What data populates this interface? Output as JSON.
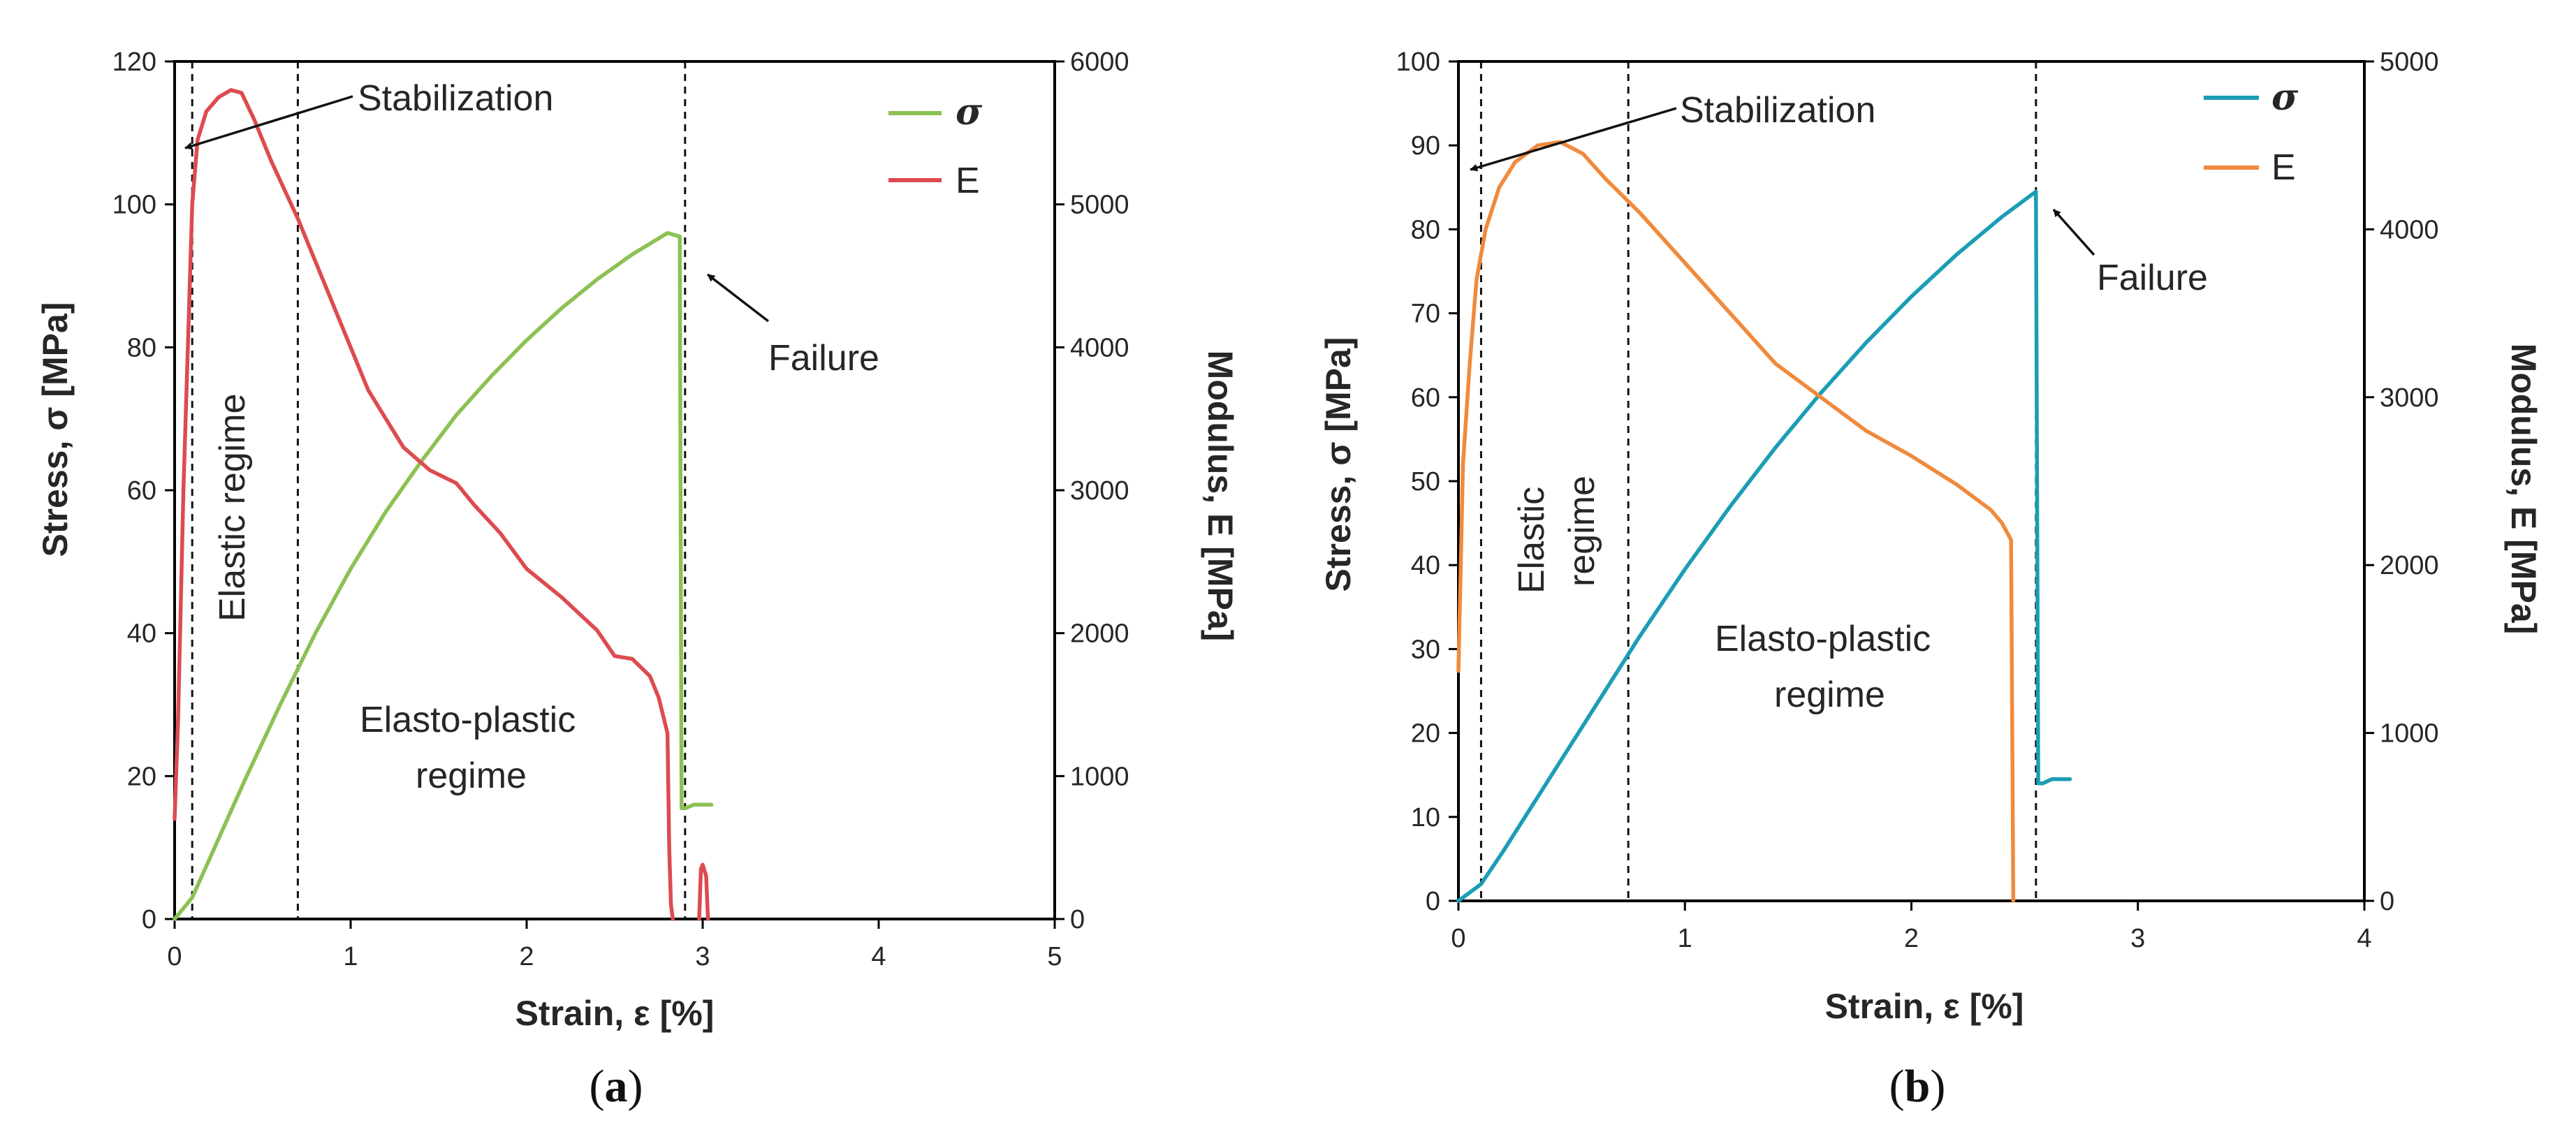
{
  "chart_data": [
    {
      "panel_label": "a",
      "type": "line",
      "xlabel": "Strain, ε [%]",
      "ylabel": "Stress, σ [MPa]",
      "y2label": "Modulus, E [MPa]",
      "xlim": [
        0,
        5
      ],
      "ylim": [
        0,
        120
      ],
      "y2lim": [
        0,
        6000
      ],
      "xticks": [
        0,
        1,
        2,
        3,
        4,
        5
      ],
      "yticks": [
        0,
        20,
        40,
        60,
        80,
        100,
        120
      ],
      "y2ticks": [
        0,
        1000,
        2000,
        3000,
        4000,
        5000,
        6000
      ],
      "vlines": [
        0.1,
        0.7,
        2.9
      ],
      "legend": [
        {
          "label": "σ",
          "color": "#8DC153",
          "symbol": true
        },
        {
          "label": "E",
          "color": "#DD4B4F",
          "symbol": false
        }
      ],
      "annotations": [
        {
          "lines": [
            "Stabilization"
          ],
          "arrow": true
        },
        {
          "lines": [
            "Failure"
          ],
          "arrow": true
        },
        {
          "lines": [
            "Elastic regime"
          ],
          "rotated": true
        },
        {
          "lines": [
            "Elasto-plastic",
            "regime"
          ]
        }
      ],
      "series": [
        {
          "name": "σ",
          "axis": "left",
          "color": "#8DC153",
          "x": [
            0,
            0.1,
            0.2,
            0.4,
            0.6,
            0.8,
            1.0,
            1.2,
            1.4,
            1.6,
            1.8,
            2.0,
            2.2,
            2.4,
            2.6,
            2.8,
            2.87,
            2.88,
            2.9,
            2.95,
            3.0,
            3.05
          ],
          "y": [
            0,
            3,
            8.5,
            19.5,
            30,
            40,
            49,
            57,
            64,
            70.5,
            76,
            81,
            85.5,
            89.5,
            93,
            96,
            95.5,
            15.5,
            15.5,
            16,
            16,
            16
          ]
        },
        {
          "name": "E",
          "axis": "right",
          "color": "#DD4B4F",
          "x": [
            0,
            0.02,
            0.05,
            0.08,
            0.1,
            0.13,
            0.18,
            0.25,
            0.32,
            0.38,
            0.45,
            0.55,
            0.7,
            0.9,
            1.1,
            1.3,
            1.45,
            1.6,
            1.7,
            1.85,
            2.0,
            2.2,
            2.4,
            2.5,
            2.6,
            2.7,
            2.75,
            2.8,
            2.81,
            2.82,
            2.83
          ],
          "y": [
            700,
            1400,
            3000,
            4200,
            5000,
            5450,
            5650,
            5750,
            5800,
            5780,
            5600,
            5300,
            4900,
            4300,
            3700,
            3300,
            3140,
            3050,
            2900,
            2700,
            2450,
            2250,
            2020,
            1840,
            1820,
            1700,
            1550,
            1300,
            500,
            100,
            0
          ]
        },
        {
          "name": "E_post",
          "axis": "right",
          "color": "#DD4B4F",
          "x": [
            2.98,
            2.99,
            3.0,
            3.02,
            3.03
          ],
          "y": [
            0,
            350,
            380,
            300,
            0
          ]
        }
      ]
    },
    {
      "panel_label": "b",
      "type": "line",
      "xlabel": "Strain, ε [%]",
      "ylabel": "Stress, σ [MPa]",
      "y2label": "Modulus, E [MPa]",
      "xlim": [
        0,
        4
      ],
      "ylim": [
        0,
        100
      ],
      "y2lim": [
        0,
        5000
      ],
      "xticks": [
        0,
        1,
        2,
        3,
        4
      ],
      "yticks": [
        0,
        10,
        20,
        30,
        40,
        50,
        60,
        70,
        80,
        90,
        100
      ],
      "y2ticks": [
        0,
        1000,
        2000,
        3000,
        4000,
        5000
      ],
      "vlines": [
        0.1,
        0.75,
        2.55
      ],
      "legend": [
        {
          "label": "σ",
          "color": "#1B9DB5",
          "symbol": true
        },
        {
          "label": "E",
          "color": "#F08A3C",
          "symbol": false
        }
      ],
      "annotations": [
        {
          "lines": [
            "Stabilization"
          ],
          "arrow": true
        },
        {
          "lines": [
            "Failure"
          ],
          "arrow": true
        },
        {
          "lines": [
            "Elastic",
            "regime"
          ],
          "rotated": true
        },
        {
          "lines": [
            "Elasto-plastic",
            "regime"
          ]
        }
      ],
      "series": [
        {
          "name": "σ",
          "axis": "left",
          "color": "#1B9DB5",
          "x": [
            0,
            0.1,
            0.2,
            0.4,
            0.6,
            0.8,
            1.0,
            1.2,
            1.4,
            1.6,
            1.8,
            2.0,
            2.2,
            2.4,
            2.55,
            2.56,
            2.58,
            2.62,
            2.66,
            2.7
          ],
          "y": [
            0,
            2,
            6,
            14.5,
            23,
            31.5,
            39.5,
            47,
            54,
            60.5,
            66.5,
            72,
            77,
            81.5,
            84.5,
            14,
            14,
            14.5,
            14.5,
            14.5
          ]
        },
        {
          "name": "E",
          "axis": "right",
          "color": "#F08A3C",
          "x": [
            0,
            0.02,
            0.05,
            0.08,
            0.12,
            0.18,
            0.25,
            0.35,
            0.45,
            0.55,
            0.65,
            0.8,
            1.0,
            1.2,
            1.4,
            1.6,
            1.8,
            2.0,
            2.2,
            2.35,
            2.4,
            2.44,
            2.45
          ],
          "y": [
            1370,
            2600,
            3200,
            3700,
            4000,
            4250,
            4400,
            4500,
            4520,
            4450,
            4300,
            4100,
            3800,
            3500,
            3200,
            3000,
            2800,
            2650,
            2480,
            2330,
            2250,
            2150,
            0
          ]
        }
      ]
    }
  ]
}
